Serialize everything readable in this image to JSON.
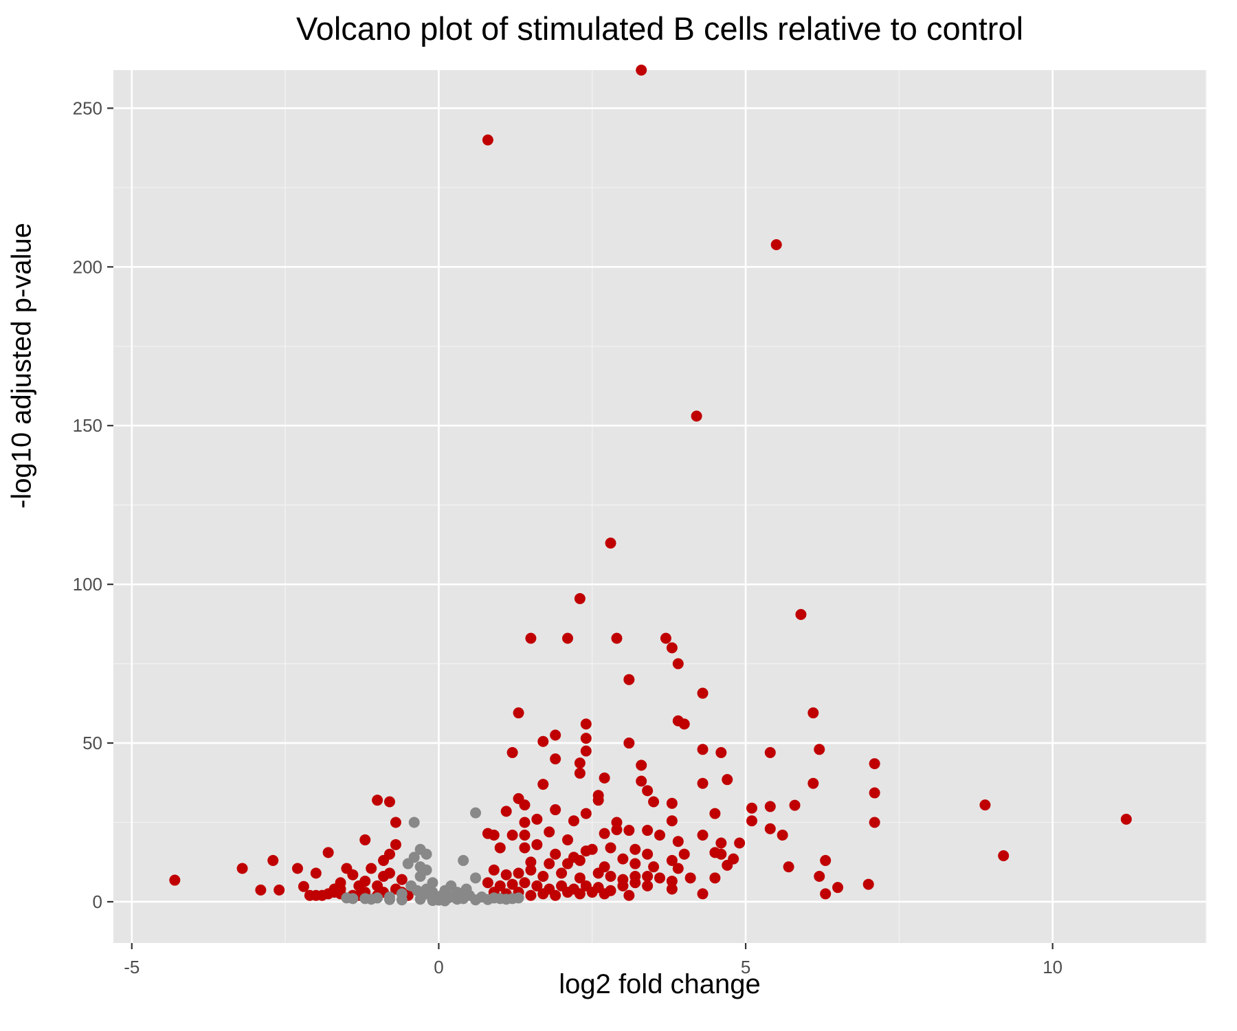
{
  "chart_data": {
    "type": "scatter",
    "title": "Volcano plot of stimulated B cells relative to control",
    "xlabel": "log2 fold change",
    "ylabel": "-log10 adjusted p-value",
    "xlim": [
      -5.3,
      12.5
    ],
    "ylim": [
      -13,
      262
    ],
    "xticks": [
      -5,
      0,
      5,
      10
    ],
    "yticks": [
      0,
      50,
      100,
      150,
      200,
      250
    ],
    "grid": true,
    "panel_background": "#e5e5e5",
    "colors": {
      "significant": "#c00000",
      "not_significant": "#888888"
    },
    "series": [
      {
        "color": "#c00000",
        "points": [
          [
            3.3,
            262
          ],
          [
            0.8,
            240
          ],
          [
            5.5,
            207
          ],
          [
            4.2,
            153
          ],
          [
            2.8,
            113
          ],
          [
            2.3,
            95.5
          ],
          [
            5.9,
            90.5
          ],
          [
            1.5,
            83
          ],
          [
            2.1,
            83
          ],
          [
            2.9,
            83
          ],
          [
            3.7,
            83
          ],
          [
            3.8,
            80
          ],
          [
            3.9,
            75
          ],
          [
            3.1,
            70
          ],
          [
            4.3,
            65.7
          ],
          [
            6.1,
            59.5
          ],
          [
            1.3,
            59.5
          ],
          [
            3.9,
            57
          ],
          [
            4.0,
            56
          ],
          [
            2.4,
            56
          ],
          [
            1.9,
            52.5
          ],
          [
            2.4,
            51.5
          ],
          [
            1.7,
            50.5
          ],
          [
            3.1,
            50
          ],
          [
            2.4,
            47.5
          ],
          [
            4.3,
            48
          ],
          [
            6.2,
            48
          ],
          [
            1.2,
            47
          ],
          [
            4.6,
            47
          ],
          [
            5.4,
            47
          ],
          [
            1.9,
            45
          ],
          [
            2.3,
            43.7
          ],
          [
            3.3,
            43
          ],
          [
            7.1,
            43.5
          ],
          [
            2.3,
            40.5
          ],
          [
            2.7,
            39
          ],
          [
            4.7,
            38.5
          ],
          [
            1.7,
            37
          ],
          [
            4.3,
            37.3
          ],
          [
            6.1,
            37.3
          ],
          [
            3.3,
            38
          ],
          [
            3.4,
            35
          ],
          [
            2.6,
            33.5
          ],
          [
            7.1,
            34.3
          ],
          [
            1.3,
            32.5
          ],
          [
            2.6,
            32
          ],
          [
            3.5,
            31.5
          ],
          [
            3.8,
            31
          ],
          [
            1.4,
            30.5
          ],
          [
            5.8,
            30.4
          ],
          [
            8.9,
            30.5
          ],
          [
            5.1,
            29.5
          ],
          [
            5.4,
            30
          ],
          [
            1.9,
            29
          ],
          [
            1.1,
            28.5
          ],
          [
            2.4,
            27.8
          ],
          [
            4.5,
            27.8
          ],
          [
            1.6,
            26
          ],
          [
            2.9,
            25
          ],
          [
            3.8,
            25.5
          ],
          [
            1.4,
            25
          ],
          [
            2.2,
            25.5
          ],
          [
            5.1,
            25.5
          ],
          [
            7.1,
            25
          ],
          [
            11.2,
            26
          ],
          [
            0.8,
            21.5
          ],
          [
            0.9,
            21
          ],
          [
            1.2,
            21
          ],
          [
            1.4,
            21
          ],
          [
            1.8,
            22
          ],
          [
            2.1,
            19.5
          ],
          [
            2.4,
            16
          ],
          [
            2.7,
            21.5
          ],
          [
            2.9,
            22.7
          ],
          [
            3.1,
            22.5
          ],
          [
            3.4,
            22.5
          ],
          [
            3.6,
            21
          ],
          [
            3.9,
            19
          ],
          [
            4.3,
            21
          ],
          [
            5.4,
            23
          ],
          [
            5.6,
            21
          ],
          [
            4.6,
            18.5
          ],
          [
            4.9,
            18.5
          ],
          [
            1.0,
            17
          ],
          [
            1.4,
            17
          ],
          [
            1.6,
            18
          ],
          [
            1.9,
            15
          ],
          [
            2.2,
            14
          ],
          [
            2.5,
            16.5
          ],
          [
            2.8,
            17
          ],
          [
            3.2,
            16.5
          ],
          [
            3.4,
            15
          ],
          [
            3.8,
            13
          ],
          [
            4.0,
            15
          ],
          [
            4.5,
            15.5
          ],
          [
            4.8,
            13.5
          ],
          [
            4.6,
            15
          ],
          [
            6.3,
            13
          ],
          [
            9.2,
            14.5
          ],
          [
            1.5,
            12.5
          ],
          [
            1.8,
            12
          ],
          [
            2.1,
            12
          ],
          [
            2.3,
            13
          ],
          [
            2.7,
            11
          ],
          [
            3.0,
            13.5
          ],
          [
            3.2,
            12
          ],
          [
            3.5,
            11
          ],
          [
            3.9,
            10.5
          ],
          [
            4.7,
            11.5
          ],
          [
            5.7,
            11
          ],
          [
            0.9,
            10
          ],
          [
            1.1,
            8.5
          ],
          [
            1.3,
            9
          ],
          [
            1.5,
            10
          ],
          [
            1.7,
            8
          ],
          [
            2.0,
            9
          ],
          [
            2.3,
            7.5
          ],
          [
            2.6,
            9
          ],
          [
            2.8,
            8
          ],
          [
            3.0,
            7
          ],
          [
            3.2,
            8
          ],
          [
            3.4,
            8
          ],
          [
            3.6,
            7.5
          ],
          [
            3.8,
            6.5
          ],
          [
            4.1,
            7.5
          ],
          [
            4.5,
            7.5
          ],
          [
            6.2,
            8
          ],
          [
            7.0,
            5.5
          ],
          [
            0.8,
            6
          ],
          [
            1.0,
            5
          ],
          [
            1.2,
            5.5
          ],
          [
            1.4,
            6
          ],
          [
            1.6,
            5
          ],
          [
            1.8,
            4
          ],
          [
            2.0,
            5
          ],
          [
            2.2,
            4
          ],
          [
            2.4,
            5
          ],
          [
            2.6,
            4.5
          ],
          [
            2.8,
            3.5
          ],
          [
            3.0,
            5
          ],
          [
            3.2,
            6
          ],
          [
            3.4,
            5
          ],
          [
            3.8,
            4
          ],
          [
            4.3,
            2.5
          ],
          [
            6.3,
            2.5
          ],
          [
            6.5,
            4.5
          ],
          [
            0.9,
            3
          ],
          [
            1.1,
            2.5
          ],
          [
            1.3,
            3
          ],
          [
            1.5,
            2
          ],
          [
            1.7,
            2.5
          ],
          [
            1.9,
            2
          ],
          [
            2.1,
            3
          ],
          [
            2.3,
            2.5
          ],
          [
            2.5,
            3
          ],
          [
            2.7,
            2.5
          ],
          [
            3.1,
            2
          ],
          [
            -4.3,
            6.8
          ],
          [
            -3.2,
            10.5
          ],
          [
            -2.7,
            13
          ],
          [
            -2.9,
            3.7
          ],
          [
            -2.6,
            3.7
          ],
          [
            -2.3,
            10.5
          ],
          [
            -2.2,
            4.8
          ],
          [
            -2.0,
            2
          ],
          [
            -2.0,
            9
          ],
          [
            -1.9,
            2
          ],
          [
            -1.8,
            15.5
          ],
          [
            -1.7,
            3
          ],
          [
            -1.6,
            6
          ],
          [
            -1.6,
            2.5
          ],
          [
            -1.5,
            10.5
          ],
          [
            -1.4,
            2
          ],
          [
            -1.3,
            5
          ],
          [
            -1.3,
            2
          ],
          [
            -1.2,
            3
          ],
          [
            -1.2,
            6.5
          ],
          [
            -1.1,
            10.5
          ],
          [
            -1.2,
            19.5
          ],
          [
            -1.0,
            2
          ],
          [
            -1.0,
            5
          ],
          [
            -0.9,
            8
          ],
          [
            -0.9,
            3
          ],
          [
            -1.0,
            32
          ],
          [
            -0.8,
            31.5
          ],
          [
            -0.7,
            25
          ],
          [
            -0.7,
            18
          ],
          [
            -0.9,
            13
          ],
          [
            -0.8,
            15
          ],
          [
            -0.7,
            4
          ],
          [
            -0.6,
            7
          ],
          [
            -0.8,
            9
          ],
          [
            -0.6,
            3
          ],
          [
            -0.5,
            2
          ],
          [
            -1.4,
            8.5
          ],
          [
            -1.6,
            4
          ],
          [
            -1.7,
            4
          ],
          [
            -1.8,
            2.5
          ],
          [
            -2.1,
            2
          ]
        ]
      },
      {
        "color": "#888888",
        "points": [
          [
            -0.4,
            25
          ],
          [
            0.6,
            28
          ],
          [
            -0.3,
            16.5
          ],
          [
            -0.4,
            14
          ],
          [
            -0.2,
            15
          ],
          [
            -0.5,
            12
          ],
          [
            0.4,
            13
          ],
          [
            -0.3,
            11
          ],
          [
            -0.2,
            10
          ],
          [
            -0.3,
            8
          ],
          [
            0.6,
            7.5
          ],
          [
            -0.1,
            6
          ],
          [
            0.2,
            5
          ],
          [
            0.1,
            3.5
          ],
          [
            0.3,
            3
          ],
          [
            -0.1,
            3
          ],
          [
            -0.2,
            2.5
          ],
          [
            0.5,
            2
          ],
          [
            0.7,
            1.5
          ],
          [
            -0.6,
            2.5
          ],
          [
            -0.8,
            1.5
          ],
          [
            -1.0,
            1.2
          ],
          [
            -1.2,
            1.0
          ],
          [
            -1.4,
            1.0
          ],
          [
            -1.5,
            1.2
          ],
          [
            1.0,
            1.0
          ],
          [
            1.2,
            1.0
          ],
          [
            1.3,
            1.2
          ],
          [
            0.9,
            1.2
          ],
          [
            0.4,
            1
          ],
          [
            0.2,
            1.5
          ],
          [
            0.0,
            0.5
          ],
          [
            -0.05,
            1
          ],
          [
            0.05,
            2
          ],
          [
            0.1,
            0.3
          ],
          [
            -0.1,
            0.4
          ],
          [
            0.3,
            0.8
          ],
          [
            -0.3,
            0.8
          ],
          [
            0.6,
            0.6
          ],
          [
            -0.6,
            0.6
          ],
          [
            0.8,
            0.7
          ],
          [
            -0.8,
            0.7
          ],
          [
            -1.1,
            0.8
          ],
          [
            1.1,
            0.8
          ],
          [
            -0.2,
            4
          ],
          [
            0.15,
            1.2
          ],
          [
            -0.45,
            5
          ],
          [
            0.35,
            2.5
          ],
          [
            -0.35,
            3.5
          ],
          [
            0.45,
            4
          ]
        ]
      }
    ]
  }
}
